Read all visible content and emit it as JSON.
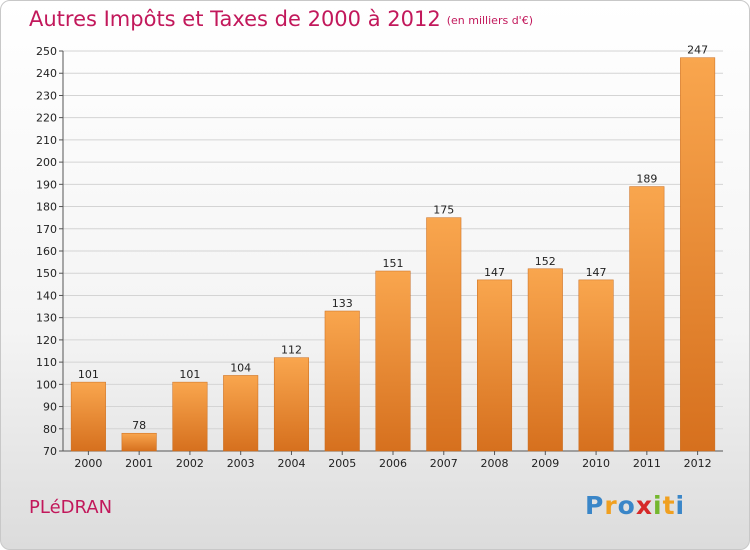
{
  "page": {
    "title": "Autres Impôts et Taxes de 2000 à 2012",
    "subtitle": "(en milliers d'€)",
    "place": "PLéDRAN",
    "brand": "Proxiti"
  },
  "colors": {
    "title": "#c2185b",
    "bar_light": "#f9a64e",
    "bar_dark": "#d6701e"
  },
  "chart_data": {
    "type": "bar",
    "title": "Autres Impôts et Taxes de 2000 à 2012",
    "subtitle": "(en milliers d'€)",
    "categories": [
      "2000",
      "2001",
      "2002",
      "2003",
      "2004",
      "2005",
      "2006",
      "2007",
      "2008",
      "2009",
      "2010",
      "2011",
      "2012"
    ],
    "values": [
      101,
      78,
      101,
      104,
      112,
      133,
      151,
      175,
      147,
      152,
      147,
      189,
      247
    ],
    "ylim": [
      70,
      250
    ],
    "yticks": [
      70,
      80,
      90,
      100,
      110,
      120,
      130,
      140,
      150,
      160,
      170,
      180,
      190,
      200,
      210,
      220,
      230,
      240,
      250
    ],
    "grid": true,
    "legend": "none"
  }
}
